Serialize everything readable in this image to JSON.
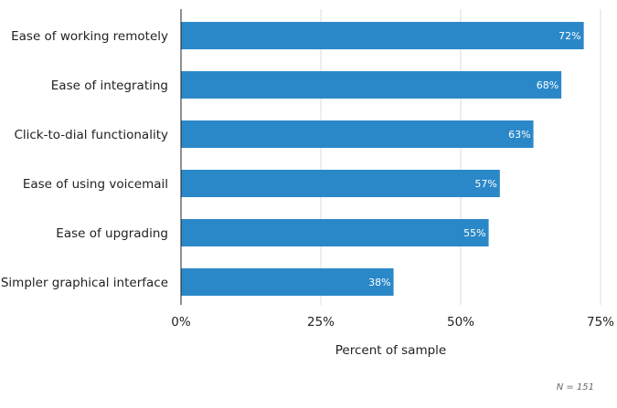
{
  "chart_data": {
    "type": "bar",
    "orientation": "horizontal",
    "categories": [
      "Ease of working remotely",
      "Ease of integrating",
      "Click-to-dial functionality",
      "Ease of using voicemail",
      "Ease of upgrading",
      "Simpler graphical interface"
    ],
    "values": [
      72,
      68,
      63,
      57,
      55,
      38
    ],
    "value_labels": [
      "72%",
      "68%",
      "63%",
      "57%",
      "55%",
      "38%"
    ],
    "xlabel": "Percent of sample",
    "ylabel": "",
    "xlim": [
      0,
      75
    ],
    "x_ticks": [
      0,
      25,
      50,
      75
    ],
    "x_tick_labels": [
      "0%",
      "25%",
      "50%",
      "75%"
    ],
    "grid": true,
    "note": "N = 151",
    "bar_color": "#2b88c8"
  }
}
